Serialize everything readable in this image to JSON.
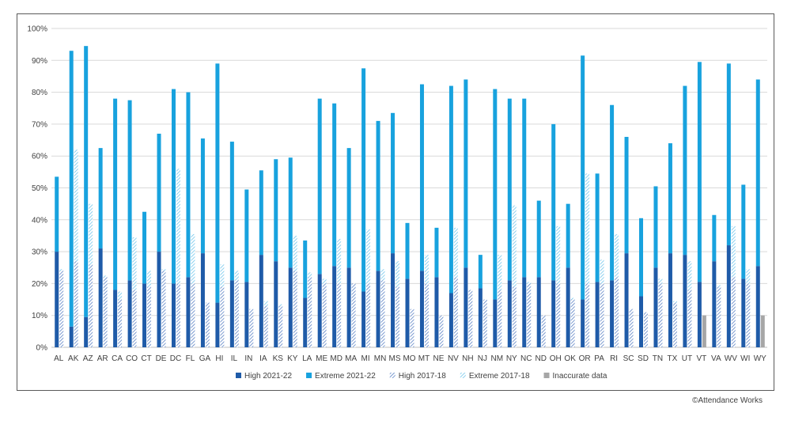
{
  "chart_data": {
    "type": "bar",
    "title": "",
    "xlabel": "",
    "ylabel": "",
    "ylim": [
      0,
      100
    ],
    "yticks": [
      "0%",
      "10%",
      "20%",
      "30%",
      "40%",
      "50%",
      "60%",
      "70%",
      "80%",
      "90%",
      "100%"
    ],
    "grid": true,
    "legend_position": "bottom",
    "categories": [
      "AL",
      "AK",
      "AZ",
      "AR",
      "CA",
      "CO",
      "CT",
      "DE",
      "DC",
      "FL",
      "GA",
      "HI",
      "IL",
      "IN",
      "IA",
      "KS",
      "KY",
      "LA",
      "ME",
      "MD",
      "MA",
      "MI",
      "MN",
      "MS",
      "MO",
      "MT",
      "NE",
      "NV",
      "NH",
      "NJ",
      "NM",
      "NY",
      "NC",
      "ND",
      "OH",
      "OK",
      "OR",
      "PA",
      "RI",
      "SC",
      "SD",
      "TN",
      "TX",
      "UT",
      "VT",
      "VA",
      "WV",
      "WI",
      "WY"
    ],
    "series": [
      {
        "name": "High 2021-22",
        "color": "#1f5ba8",
        "pattern": "solid",
        "group": "2021-22",
        "values": [
          30,
          6.5,
          9.5,
          31,
          18,
          21,
          20,
          30,
          20,
          22,
          29.5,
          14,
          21,
          20.5,
          29,
          27,
          25,
          15.5,
          23,
          25.5,
          25,
          17.5,
          24,
          29.5,
          21.5,
          24,
          22,
          17,
          25,
          18.5,
          15,
          21,
          22,
          22,
          21,
          25,
          15,
          20.5,
          21,
          29.5,
          16,
          25,
          29.5,
          29,
          20.5,
          27,
          32,
          21.5,
          25.5
        ]
      },
      {
        "name": "Extreme 2021-22",
        "color": "#18a2de",
        "pattern": "solid",
        "group": "2021-22",
        "values": [
          23.5,
          86.5,
          85,
          31.5,
          60,
          56.5,
          22.5,
          37,
          61,
          58,
          36,
          75,
          43.5,
          29,
          26.5,
          32,
          34.5,
          18,
          55,
          51,
          37.5,
          70,
          47,
          44,
          17.5,
          58.5,
          15.5,
          65,
          59,
          10.5,
          66,
          57,
          56,
          24,
          49,
          20,
          76.5,
          34,
          55,
          36.5,
          24.5,
          25.5,
          34.5,
          53,
          69,
          14.5,
          57,
          29.5,
          58.5
        ]
      },
      {
        "name": "High 2017-18",
        "color": "#5b82c5",
        "pattern": "hatch",
        "group": "2017-18",
        "values": [
          24,
          27,
          26,
          22,
          15,
          18,
          19,
          24,
          20,
          20,
          14,
          19,
          21,
          12,
          13,
          13,
          24,
          22,
          20,
          20,
          20,
          20,
          21,
          19,
          12,
          20,
          10,
          22,
          18,
          15,
          18,
          19,
          20,
          10,
          20,
          15,
          20,
          20,
          22,
          12,
          11,
          20,
          14,
          18,
          null,
          19,
          22,
          20,
          null
        ]
      },
      {
        "name": "Extreme 2017-18",
        "color": "#72c6ec",
        "pattern": "hatch",
        "group": "2017-18",
        "values": [
          0.5,
          35,
          19,
          0.5,
          2.5,
          16.5,
          5,
          0.5,
          36,
          15.5,
          0,
          7,
          3,
          0,
          1.5,
          0.5,
          11,
          1.5,
          1.5,
          14,
          0,
          17,
          3.5,
          8,
          0,
          9,
          0,
          15.5,
          0,
          0,
          11,
          25.5,
          0.5,
          0,
          18,
          0.5,
          34.5,
          7.5,
          13.5,
          0,
          0,
          1.5,
          0.5,
          9,
          null,
          0.5,
          16,
          4.5,
          null
        ]
      },
      {
        "name": "Inaccurate data",
        "color": "#a6a6a6",
        "pattern": "solid",
        "group": "2017-18",
        "values": [
          null,
          null,
          null,
          null,
          null,
          null,
          null,
          null,
          null,
          null,
          null,
          null,
          null,
          null,
          null,
          null,
          null,
          null,
          null,
          null,
          null,
          null,
          null,
          null,
          null,
          null,
          null,
          null,
          null,
          null,
          null,
          null,
          null,
          null,
          null,
          null,
          null,
          null,
          null,
          null,
          null,
          null,
          null,
          null,
          10,
          null,
          null,
          null,
          10
        ]
      }
    ]
  },
  "credit": "©Attendance Works"
}
